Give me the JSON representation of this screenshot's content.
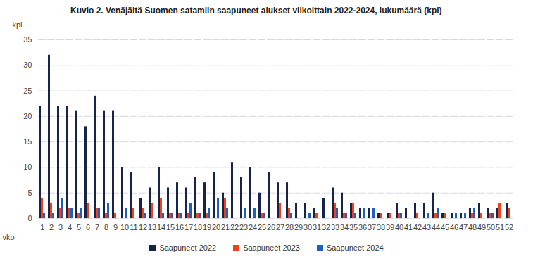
{
  "chart_data": {
    "type": "bar",
    "title": "Kuvio 2. Venäjältä Suomen satamiin saapuneet alukset viikoittain 2022-2024, lukumäärä (kpl)",
    "x_label": "vko",
    "y_label": "kpl",
    "categories": [
      "1",
      "2",
      "3",
      "4",
      "5",
      "6",
      "7",
      "8",
      "9",
      "10",
      "11",
      "12",
      "13",
      "14",
      "15",
      "16",
      "17",
      "18",
      "19",
      "20",
      "21",
      "22",
      "23",
      "24",
      "25",
      "26",
      "27",
      "28",
      "29",
      "30",
      "31",
      "32",
      "33",
      "34",
      "35",
      "36",
      "37",
      "38",
      "39",
      "40",
      "41",
      "42",
      "43",
      "44",
      "45",
      "46",
      "47",
      "48",
      "49",
      "50",
      "51",
      "52"
    ],
    "series": [
      {
        "name": "Saapuneet 2022",
        "color": "#17244a",
        "values": [
          22,
          32,
          22,
          22,
          21,
          18,
          24,
          21,
          21,
          10,
          9,
          4,
          6,
          10,
          6,
          7,
          6,
          8,
          7,
          9,
          5,
          11,
          8,
          10,
          5,
          9,
          7,
          7,
          3,
          3,
          2,
          4,
          6,
          5,
          3,
          2,
          2,
          1,
          1,
          3,
          2,
          3,
          3,
          5,
          1,
          1,
          1,
          2,
          3,
          2,
          2,
          3
        ]
      },
      {
        "name": "Saapuneet 2023",
        "color": "#f2401d",
        "values": [
          4,
          3,
          2,
          2,
          1,
          3,
          2,
          1,
          1,
          0,
          2,
          2,
          3,
          4,
          1,
          1,
          1,
          1,
          1,
          0,
          4,
          0,
          0,
          0,
          1,
          0,
          3,
          2,
          0,
          0,
          1,
          0,
          3,
          1,
          3,
          0,
          0,
          1,
          1,
          1,
          0,
          1,
          0,
          1,
          1,
          0,
          0,
          1,
          1,
          1,
          3,
          2
        ]
      },
      {
        "name": "Saapuneet 2024",
        "color": "#1f5fbf",
        "values": [
          1,
          1,
          4,
          2,
          2,
          0,
          2,
          3,
          0,
          2,
          0,
          1,
          0,
          1,
          1,
          1,
          3,
          1,
          2,
          4,
          2,
          0,
          2,
          2,
          1,
          0,
          0,
          1,
          0,
          1,
          0,
          0,
          2,
          1,
          1,
          2,
          2,
          0,
          0,
          1,
          0,
          0,
          1,
          2,
          0,
          1,
          1,
          2,
          0,
          1,
          0,
          0
        ]
      }
    ],
    "ylim": [
      0,
      35
    ],
    "yticks": [
      0,
      5,
      10,
      15,
      20,
      25,
      30,
      35
    ],
    "grid": true,
    "legend": "bottom"
  }
}
